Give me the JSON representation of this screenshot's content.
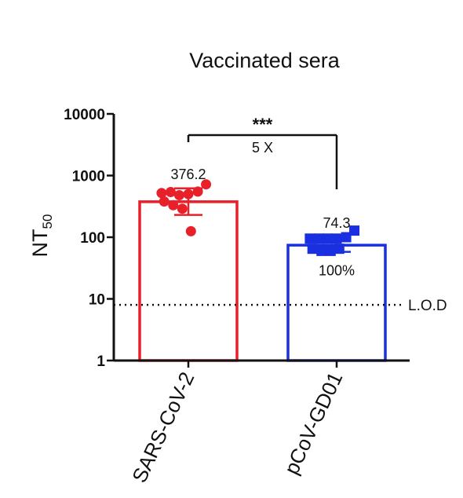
{
  "chart_data": {
    "type": "bar",
    "title": "Vaccinated sera",
    "ylabel": {
      "main": "NT",
      "sub": "50"
    },
    "yscale": "log",
    "ylim": [
      1,
      10000
    ],
    "yticks": [
      "1",
      "10",
      "100",
      "1000",
      "10000"
    ],
    "categories": [
      "SARS-CoV-2",
      "pCoV-GD01"
    ],
    "series": [
      {
        "category": "SARS-CoV-2",
        "value": 376.2,
        "value_label": "376.2",
        "error_low": 230,
        "error_high": 620,
        "marker": "circle",
        "color": "#e8202a",
        "points": [
          520,
          540,
          480,
          500,
          550,
          720,
          380,
          330,
          290,
          125
        ]
      },
      {
        "category": "pCoV-GD01",
        "value": 74.3,
        "value_label": "74.3",
        "error_low": 58,
        "error_high": 100,
        "marker": "square",
        "color": "#1a2fe0",
        "points": [
          95,
          95,
          95,
          95,
          100,
          128,
          65,
          60,
          60,
          65
        ],
        "percent_label": "100%"
      }
    ],
    "comparison": {
      "stars": "***",
      "fold_label": "5 X"
    },
    "lod": {
      "value": 8,
      "label": "L.O.D"
    },
    "grid": false
  }
}
